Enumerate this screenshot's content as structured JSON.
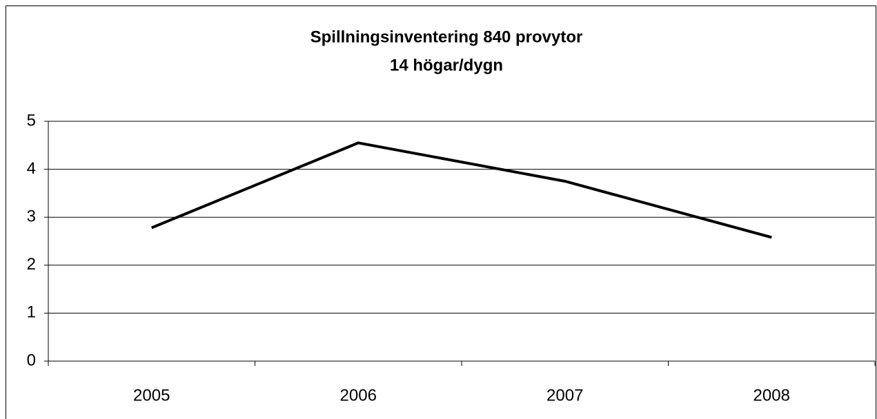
{
  "chart_data": {
    "type": "line",
    "title": "Spillningsinventering 840 provytor",
    "subtitle": "14 högar/dygn",
    "categories": [
      "2005",
      "2006",
      "2007",
      "2008"
    ],
    "series": [
      {
        "name": "Spillningsinventering",
        "color": "#000000",
        "values": [
          2.78,
          4.55,
          3.75,
          2.58
        ]
      }
    ],
    "ylim": [
      0,
      5
    ],
    "yticks": [
      0,
      1,
      2,
      3,
      4,
      5
    ],
    "grid": true
  }
}
